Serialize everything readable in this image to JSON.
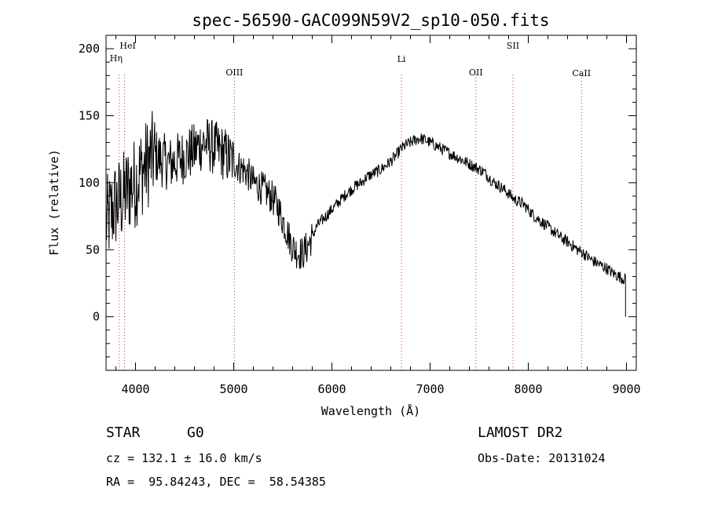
{
  "chart_data": {
    "type": "line",
    "title": "spec-56590-GAC099N59V2_sp10-050.fits",
    "xlabel": "Wavelength (Å)",
    "ylabel": "Flux (relative)",
    "xlim": [
      3700,
      9100
    ],
    "ylim": [
      -40,
      210
    ],
    "xticks": [
      4000,
      5000,
      6000,
      7000,
      8000,
      9000
    ],
    "yticks": [
      0,
      50,
      100,
      150,
      200
    ],
    "grid": false,
    "line_color": "#000000",
    "marker_color": "#cc3333",
    "series": [
      {
        "x": [
          3700,
          3740,
          3780,
          3820,
          3860,
          3900,
          3950,
          4000,
          4050,
          4100,
          4150,
          4200,
          4250,
          4300,
          4350,
          4400,
          4450,
          4500,
          4550,
          4600,
          4650,
          4700,
          4750,
          4800,
          4850,
          4900,
          4950,
          5000,
          5050,
          5100,
          5150,
          5200,
          5250,
          5300,
          5350,
          5400,
          5450,
          5500,
          5550,
          5600,
          5650,
          5700,
          5750,
          5800,
          5850,
          5900,
          5950,
          6000,
          6050,
          6100,
          6150,
          6200,
          6250,
          6300,
          6350,
          6400,
          6450,
          6500,
          6550,
          6600,
          6650,
          6700,
          6750,
          6800,
          6850,
          6900,
          6950,
          7000,
          7050,
          7100,
          7150,
          7200,
          7250,
          7300,
          7350,
          7400,
          7450,
          7500,
          7550,
          7600,
          7650,
          7700,
          7750,
          7800,
          7850,
          7900,
          7950,
          8000,
          8050,
          8100,
          8150,
          8200,
          8250,
          8300,
          8350,
          8400,
          8450,
          8500,
          8550,
          8600,
          8650,
          8700,
          8750,
          8800,
          8850,
          8900,
          8950,
          8990
        ],
        "y": [
          70,
          75,
          82,
          85,
          88,
          92,
          98,
          100,
          108,
          112,
          118,
          120,
          118,
          116,
          114,
          116,
          118,
          120,
          122,
          124,
          128,
          130,
          128,
          126,
          124,
          122,
          118,
          116,
          112,
          110,
          106,
          100,
          98,
          95,
          92,
          88,
          82,
          72,
          62,
          52,
          48,
          47,
          52,
          60,
          68,
          72,
          76,
          80,
          84,
          88,
          92,
          95,
          98,
          100,
          104,
          106,
          108,
          110,
          113,
          116,
          120,
          125,
          128,
          130,
          132,
          133,
          132,
          130,
          128,
          126,
          124,
          122,
          120,
          118,
          116,
          114,
          112,
          110,
          108,
          104,
          100,
          98,
          95,
          92,
          88,
          86,
          84,
          80,
          76,
          73,
          70,
          67,
          64,
          61,
          58,
          56,
          53,
          50,
          48,
          45,
          42,
          40,
          38,
          36,
          33,
          31,
          29,
          28
        ]
      }
    ],
    "lines": [
      {
        "label": "Hη",
        "x": 3835
      },
      {
        "label": "HeI",
        "x": 3889
      },
      {
        "label": "OIII",
        "x": 5007
      },
      {
        "label": "Li",
        "x": 6708
      },
      {
        "label": "OII",
        "x": 7466
      },
      {
        "label": "SII",
        "x": 7844
      },
      {
        "label": "CaII",
        "x": 8542
      }
    ]
  },
  "info": {
    "object_type": "STAR",
    "subclass": "G0",
    "survey": "LAMOST DR2",
    "cz": "cz = 132.1 ± 16.0 km/s",
    "obs_date": "Obs-Date: 20131024",
    "coords": "RA =  95.84243, DEC =  58.54385"
  }
}
